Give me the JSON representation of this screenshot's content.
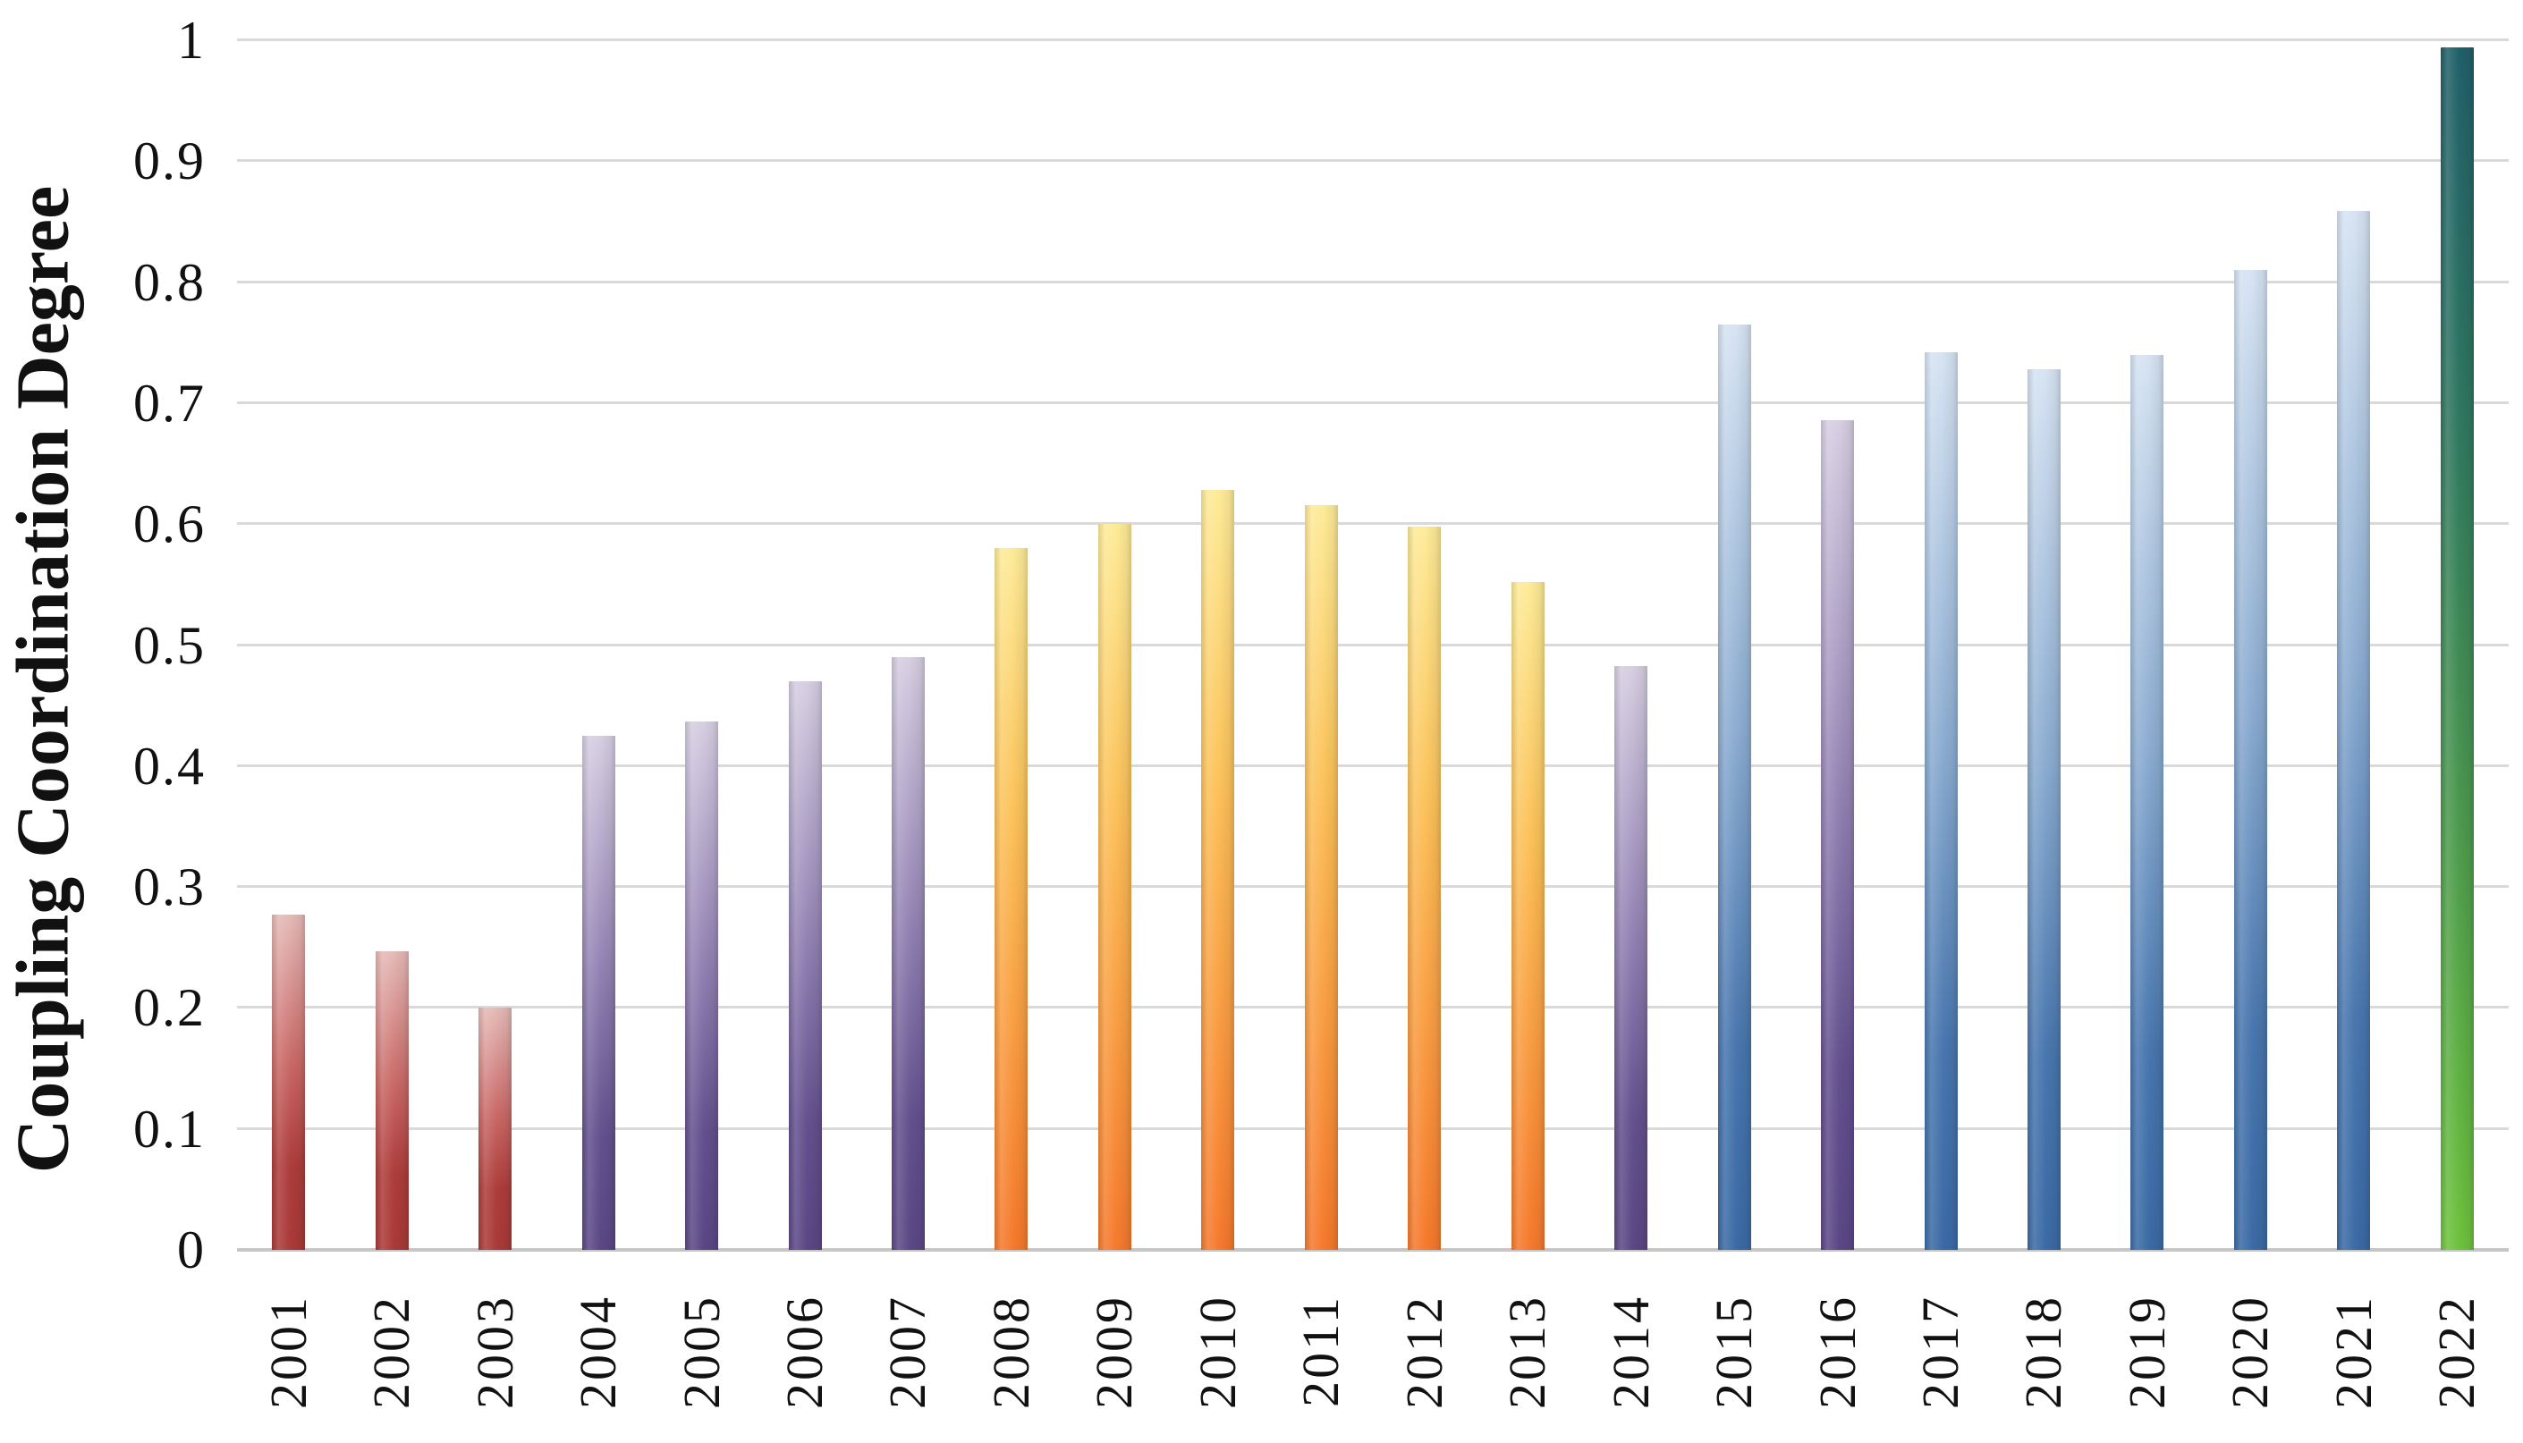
{
  "background_color": "#ffffff",
  "axes": {
    "y_title": "Coupling Coordination Degree",
    "y_ticks": [
      "1",
      "0.9",
      "0.8",
      "0.7",
      "0.6",
      "0.5",
      "0.4",
      "0.3",
      "0.2",
      "0.1",
      "0"
    ],
    "grid_color": "#d9d9d9",
    "baseline_color": "#c6c6c6",
    "text_color": "#111111"
  },
  "chart_data": {
    "type": "bar",
    "title": "",
    "xlabel": "",
    "ylabel": "Coupling Coordination Degree",
    "ylim": [
      0,
      1
    ],
    "ytick_interval": 0.1,
    "grid": "horizontal",
    "legend_position": "none",
    "categories": [
      "2001",
      "2002",
      "2003",
      "2004",
      "2005",
      "2006",
      "2007",
      "2008",
      "2009",
      "2010",
      "2011",
      "2012",
      "2013",
      "2014",
      "2015",
      "2016",
      "2017",
      "2018",
      "2019",
      "2020",
      "2021",
      "2022"
    ],
    "values": [
      0.277,
      0.247,
      0.2,
      0.425,
      0.437,
      0.47,
      0.49,
      0.58,
      0.6,
      0.628,
      0.616,
      0.598,
      0.552,
      0.483,
      0.765,
      0.686,
      0.742,
      0.728,
      0.74,
      0.81,
      0.859,
      0.994
    ],
    "bar_color_groups": [
      "red",
      "red",
      "red",
      "purple",
      "purple",
      "purple",
      "purple",
      "orange",
      "orange",
      "orange",
      "orange",
      "orange",
      "orange",
      "purple",
      "blue",
      "purple",
      "blue",
      "blue",
      "blue",
      "blue",
      "blue",
      "green"
    ],
    "gradients": {
      "red": [
        "#e5bab7 0%",
        "#c96866 45%",
        "#ad3d3b 75%",
        "#a93a38 100%"
      ],
      "purple": [
        "#d6cee1 0%",
        "#9383b4 45%",
        "#64508e 78%",
        "#5b4785 100%"
      ],
      "orange": [
        "#fdeb98 0%",
        "#fcc25a 38%",
        "#f99e43 68%",
        "#f5792d 100%"
      ],
      "blue": [
        "#d6e3f2 0%",
        "#8aabd0 45%",
        "#4876ae 78%",
        "#3b6aa5 100%"
      ],
      "green": [
        "#20606a 0%",
        "#31795f 33%",
        "#4f9d4c 68%",
        "#6ec23d 100%"
      ]
    }
  }
}
